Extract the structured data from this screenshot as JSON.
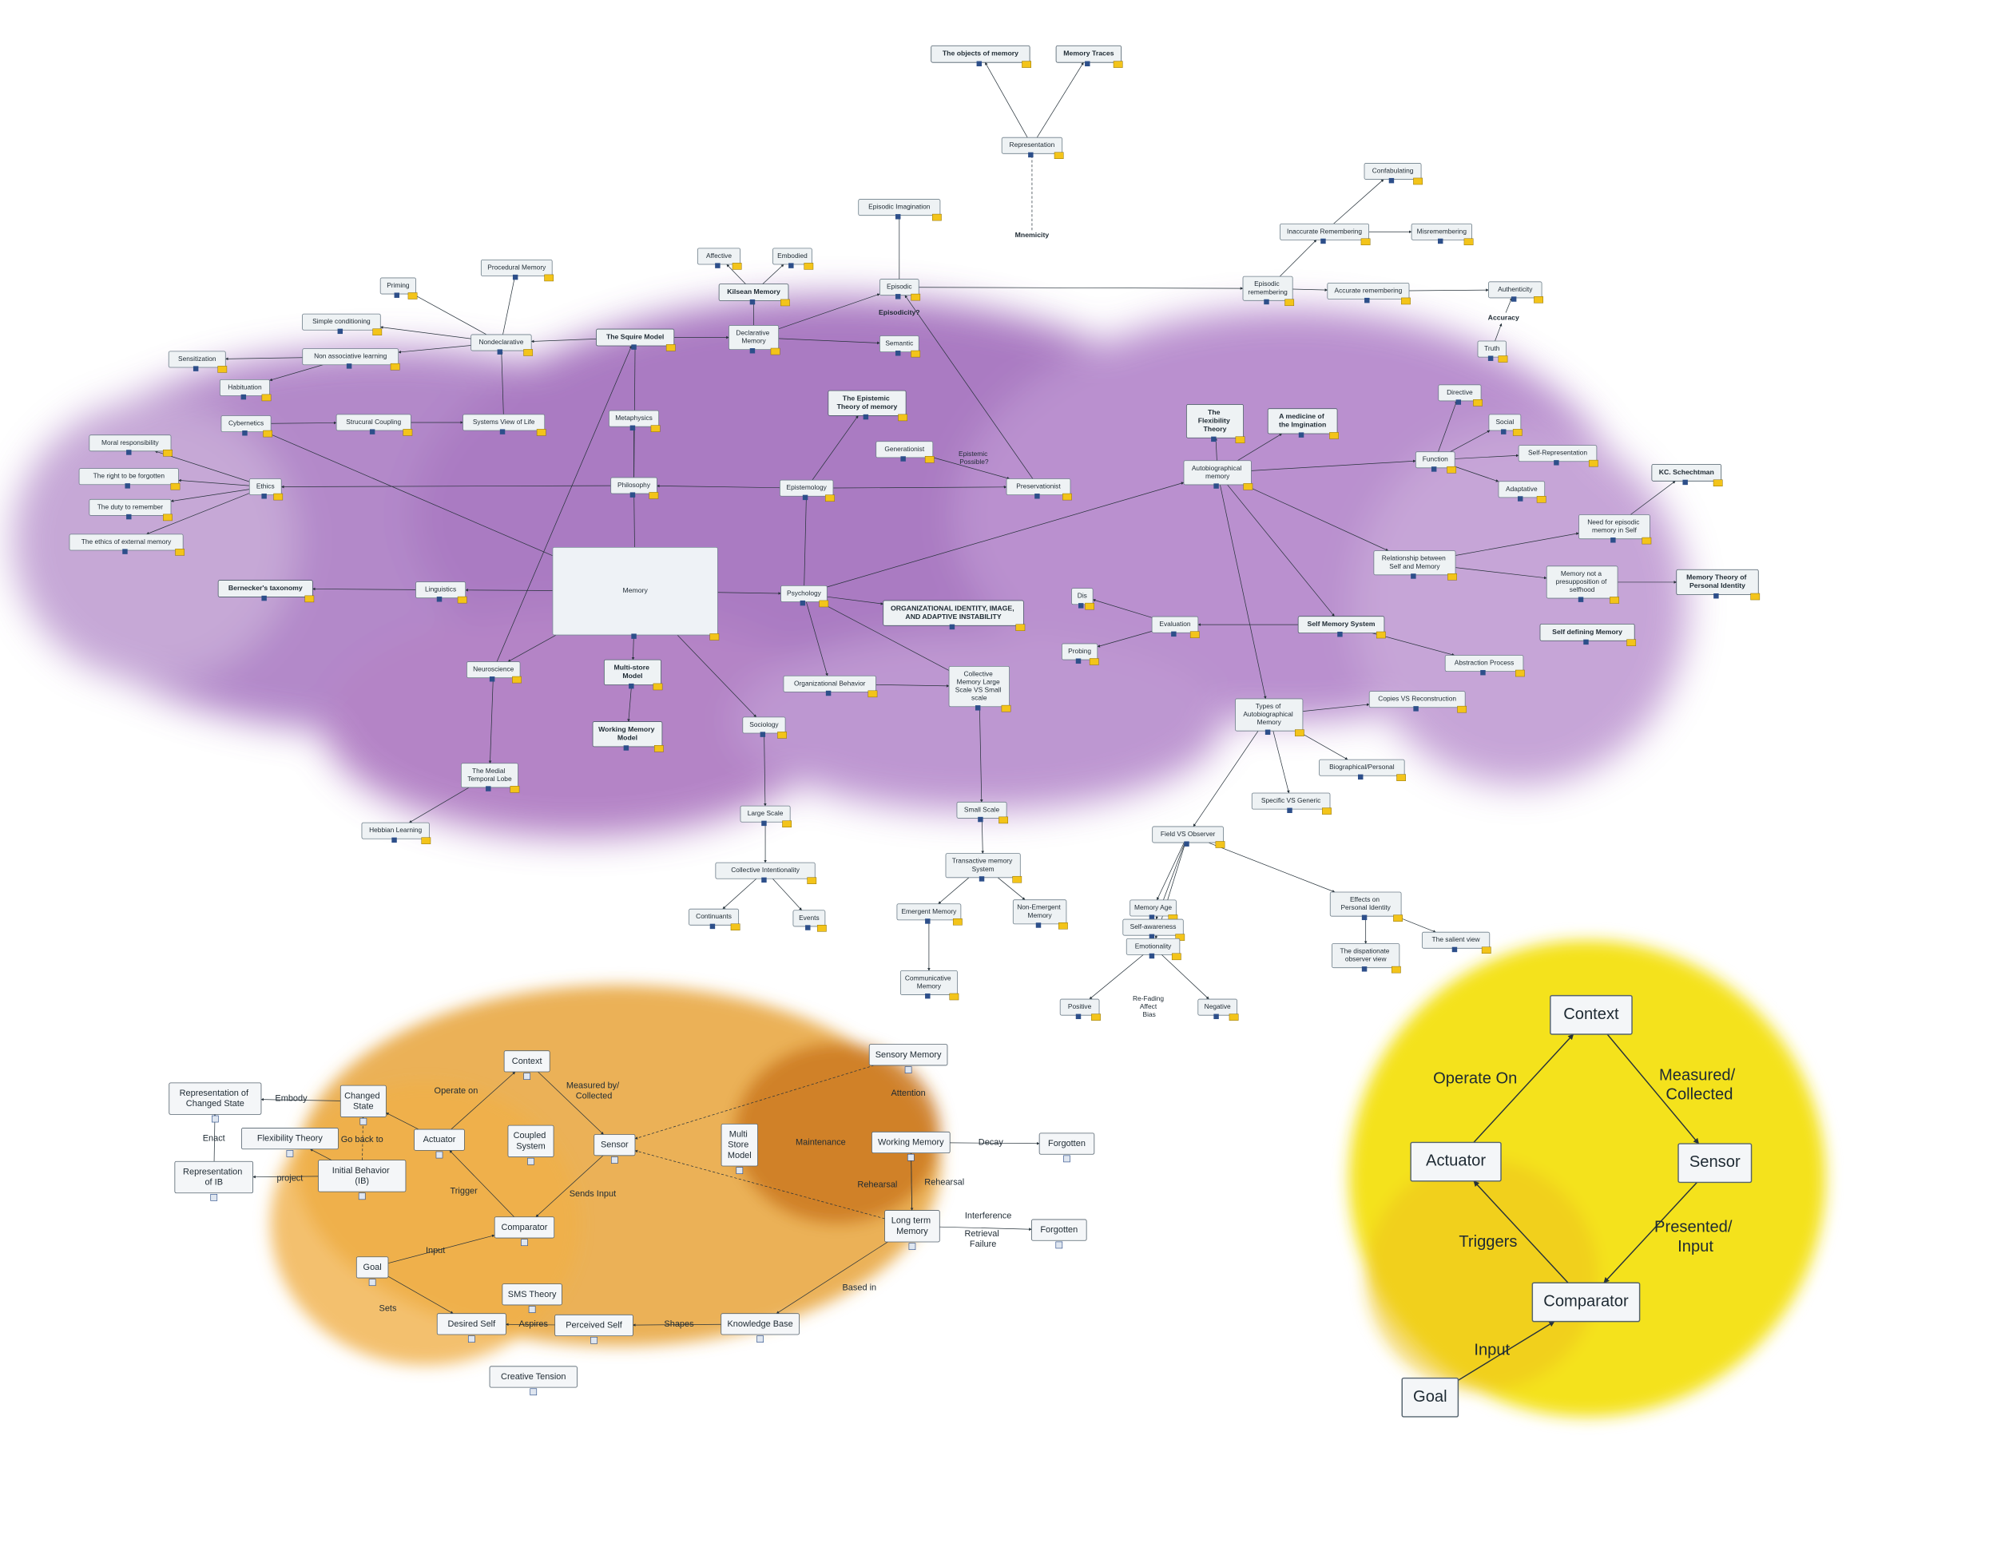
{
  "nodes": [
    {
      "label": "The objects of memory"
    },
    {
      "label": "Memory Traces"
    },
    {
      "label": "Representation"
    },
    {
      "label": "Confabulating"
    },
    {
      "label": "Episodic Imagination"
    },
    {
      "label": "Inaccurate Remembering"
    },
    {
      "label": "Misremembering"
    },
    {
      "label": "Affective"
    },
    {
      "label": "Embodied"
    },
    {
      "label": "Procedural Memory"
    },
    {
      "label": "Episodic"
    },
    {
      "label": "Episodic remembering"
    },
    {
      "label": "Accurate remembering"
    },
    {
      "label": "Authenticity"
    },
    {
      "label": "Priming"
    },
    {
      "label": "Kilsean Memory"
    },
    {
      "label": "Simple conditioning"
    },
    {
      "label": "The Squire Model"
    },
    {
      "label": "Declarative Memory"
    },
    {
      "label": "Semantic"
    },
    {
      "label": "Nondeclarative"
    },
    {
      "label": "Truth"
    },
    {
      "label": "Sensitization"
    },
    {
      "label": "Non associative learning"
    },
    {
      "label": "Habituation"
    },
    {
      "label": "The Epistemic Theory of memory"
    },
    {
      "label": "The Flexibility Theory"
    },
    {
      "label": "A medicine of the Imgination"
    },
    {
      "label": "Directive"
    },
    {
      "label": "Cybernetics"
    },
    {
      "label": "Strucural Coupling"
    },
    {
      "label": "Systems View of Life"
    },
    {
      "label": "Metaphysics"
    },
    {
      "label": "Social"
    },
    {
      "label": "Moral responsibility"
    },
    {
      "label": "Generationist"
    },
    {
      "label": "Self-Representation"
    },
    {
      "label": "Function"
    },
    {
      "label": "Autobiographical memory"
    },
    {
      "label": "The right to be forgotten"
    },
    {
      "label": "Ethics"
    },
    {
      "label": "Philosophy"
    },
    {
      "label": "Epistemology"
    },
    {
      "label": "Preservationist"
    },
    {
      "label": "Adaptative"
    },
    {
      "label": "KC. Schechtman"
    },
    {
      "label": "The duty to remember"
    },
    {
      "label": "Need for episodic memory in Self"
    },
    {
      "label": "The ethics of external memory"
    },
    {
      "label": "Relationship between Self and Memory"
    },
    {
      "label": "Memory"
    },
    {
      "label": "Bernecker's taxonomy"
    },
    {
      "label": "Linguistics"
    },
    {
      "label": "Psychology"
    },
    {
      "label": "Memory not a presupposition of selfhood"
    },
    {
      "label": "Memory Theory of Personal Identity"
    },
    {
      "label": "Dis"
    },
    {
      "label": "ORGANIZATIONAL IDENTITY, IMAGE, AND ADAPTIVE INSTABILITY"
    },
    {
      "label": "Evaluation"
    },
    {
      "label": "Self Memory System"
    },
    {
      "label": "Self defining Memory"
    },
    {
      "label": "Probing"
    },
    {
      "label": "Abstraction Process"
    },
    {
      "label": "Neuroscience"
    },
    {
      "label": "Multi-store Model"
    },
    {
      "label": "Organizational Behavior"
    },
    {
      "label": "Collective Memory Large Scale VS Small scale"
    },
    {
      "label": "Copies VS Reconstruction"
    },
    {
      "label": "Types of Autobiographical Memory"
    },
    {
      "label": "Sociology"
    },
    {
      "label": "Working Memory Model"
    },
    {
      "label": "Biographical/Personal"
    },
    {
      "label": "The Medial Temporal Lobe"
    },
    {
      "label": "Specific VS Generic"
    },
    {
      "label": "Large Scale"
    },
    {
      "label": "Small Scale"
    },
    {
      "label": "Hebbian Learning"
    },
    {
      "label": "Field VS Observer"
    },
    {
      "label": "Transactive memory System"
    },
    {
      "label": "Collective Intentionality"
    },
    {
      "label": "Emergent Memory"
    },
    {
      "label": "Non-Emergent Memory"
    },
    {
      "label": "Continuants"
    },
    {
      "label": "Events"
    },
    {
      "label": "Effects on Personal Identity"
    },
    {
      "label": "Memory Age"
    },
    {
      "label": "Self-awareness"
    },
    {
      "label": "Emotionality"
    },
    {
      "label": "The dispationate observer view"
    },
    {
      "label": "The salient view"
    },
    {
      "label": "Communicative Memory"
    },
    {
      "label": "Positive"
    },
    {
      "label": "Negative"
    },
    {
      "label": "Sensory Memory"
    },
    {
      "label": "Context"
    },
    {
      "label": "Representation of Changed State"
    },
    {
      "label": "Changed State"
    },
    {
      "label": "Flexibility Theory"
    },
    {
      "label": "Actuator"
    },
    {
      "label": "Coupled System"
    },
    {
      "label": "Sensor"
    },
    {
      "label": "Multi Store Model"
    },
    {
      "label": "Working Memory"
    },
    {
      "label": "Forgotten"
    },
    {
      "label": "Representation of IB"
    },
    {
      "label": "Initial Behavior (IB)"
    },
    {
      "label": "Long term Memory"
    },
    {
      "label": "Comparator"
    },
    {
      "label": "Forgotten"
    },
    {
      "label": "Goal"
    },
    {
      "label": "SMS Theory"
    },
    {
      "label": "Desired Self"
    },
    {
      "label": "Perceived Self"
    },
    {
      "label": "Knowledge Base"
    },
    {
      "label": "Creative Tension"
    },
    {
      "label": "Context"
    },
    {
      "label": "Actuator"
    },
    {
      "label": "Sensor"
    },
    {
      "label": "Comparator"
    },
    {
      "label": "Goal"
    }
  ],
  "links": [
    {
      "label": "Mnemicity"
    },
    {
      "label": "Episodicity?"
    },
    {
      "label": "Accuracy"
    },
    {
      "label": "Epistemic Possible?"
    },
    {
      "label": "Re-Fading Affect Bias"
    },
    {
      "label": "Embody"
    },
    {
      "label": "Enact"
    },
    {
      "label": "project"
    },
    {
      "label": "Go back to"
    },
    {
      "label": "Operate on"
    },
    {
      "label": "Measured by/ Collected"
    },
    {
      "label": "Trigger"
    },
    {
      "label": "Sends Input"
    },
    {
      "label": "Input"
    },
    {
      "label": "Sets"
    },
    {
      "label": "Aspires"
    },
    {
      "label": "Shapes"
    },
    {
      "label": "Based in"
    },
    {
      "label": "Attention"
    },
    {
      "label": "Maintenance"
    },
    {
      "label": "Decay"
    },
    {
      "label": "Rehearsal"
    },
    {
      "label": "Rehearsal"
    },
    {
      "label": "Interference"
    },
    {
      "label": "Retrieval Failure"
    },
    {
      "label": "Operate On"
    },
    {
      "label": "Measured/ Collected"
    },
    {
      "label": "Triggers"
    },
    {
      "label": "Presented/ Input"
    },
    {
      "label": "Input"
    }
  ]
}
